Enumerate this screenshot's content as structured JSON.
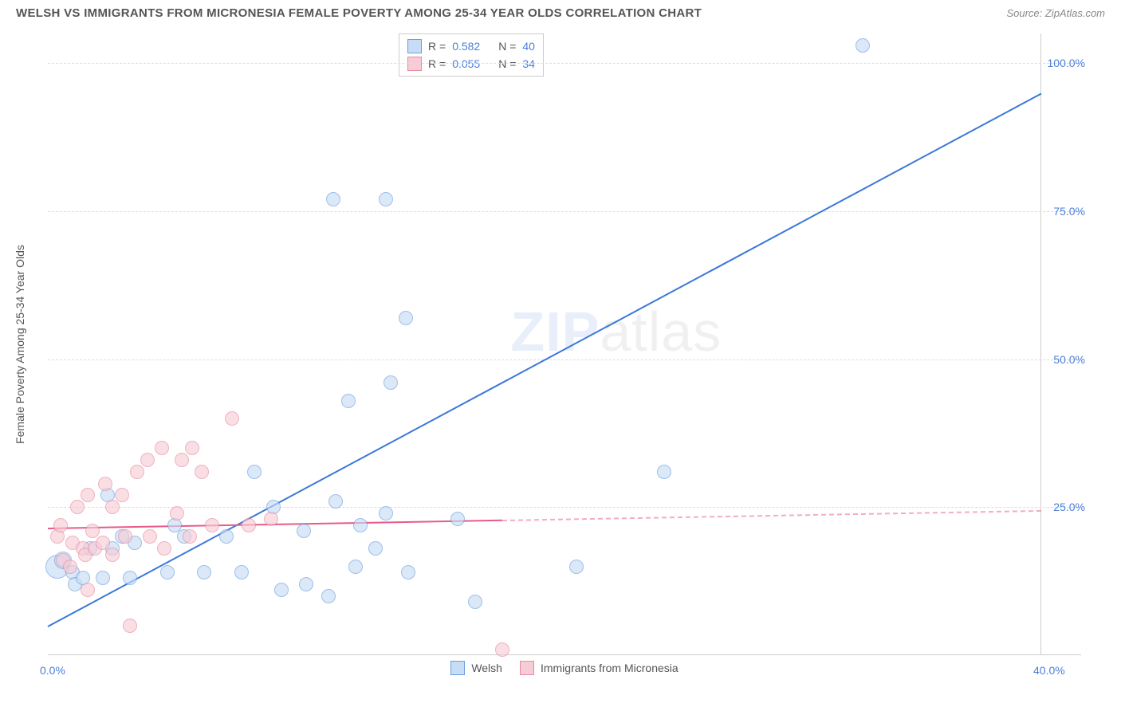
{
  "title": "WELSH VS IMMIGRANTS FROM MICRONESIA FEMALE POVERTY AMONG 25-34 YEAR OLDS CORRELATION CHART",
  "source": "Source: ZipAtlas.com",
  "ylabel": "Female Poverty Among 25-34 Year Olds",
  "watermark_zip": "ZIP",
  "watermark_atlas": "atlas",
  "chart": {
    "type": "scatter",
    "xlim": [
      0,
      40
    ],
    "ylim": [
      0,
      105
    ],
    "xticks": [
      {
        "v": 0,
        "label": "0.0%"
      },
      {
        "v": 40,
        "label": "40.0%"
      }
    ],
    "yticks": [
      {
        "v": 25,
        "label": "25.0%"
      },
      {
        "v": 50,
        "label": "50.0%"
      },
      {
        "v": 75,
        "label": "75.0%"
      },
      {
        "v": 100,
        "label": "100.0%"
      }
    ],
    "background_color": "#ffffff",
    "grid_color": "#dddddd",
    "axis_color": "#cccccc",
    "tick_font_color": "#4a7fd8",
    "label_font_color": "#555555",
    "title_fontsize": 15,
    "tick_fontsize": 14,
    "label_fontsize": 14,
    "watermark_color": "#4a7fd8",
    "watermark_opacity": 0.12,
    "series": [
      {
        "name": "Welsh",
        "fill": "#c7dcf5",
        "stroke": "#6a9fe0",
        "fill_opacity": 0.65,
        "marker_radius": 9,
        "trend": {
          "x1": 0,
          "y1": 5,
          "x2": 40,
          "y2": 95,
          "color": "#3b78d8",
          "width": 2,
          "dashed_from": null
        },
        "R_label": "R =",
        "R": "0.582",
        "N_label": "N =",
        "N": "40",
        "points": [
          {
            "x": 0.4,
            "y": 15,
            "r": 15
          },
          {
            "x": 0.6,
            "y": 16,
            "r": 11
          },
          {
            "x": 1.0,
            "y": 14
          },
          {
            "x": 1.1,
            "y": 12
          },
          {
            "x": 1.4,
            "y": 13
          },
          {
            "x": 1.7,
            "y": 18
          },
          {
            "x": 2.2,
            "y": 13
          },
          {
            "x": 2.4,
            "y": 27
          },
          {
            "x": 2.6,
            "y": 18
          },
          {
            "x": 3.0,
            "y": 20
          },
          {
            "x": 3.3,
            "y": 13
          },
          {
            "x": 3.5,
            "y": 19
          },
          {
            "x": 4.8,
            "y": 14
          },
          {
            "x": 5.1,
            "y": 22
          },
          {
            "x": 5.5,
            "y": 20
          },
          {
            "x": 6.3,
            "y": 14
          },
          {
            "x": 7.2,
            "y": 20
          },
          {
            "x": 7.8,
            "y": 14
          },
          {
            "x": 8.3,
            "y": 31
          },
          {
            "x": 9.1,
            "y": 25
          },
          {
            "x": 9.4,
            "y": 11
          },
          {
            "x": 10.3,
            "y": 21
          },
          {
            "x": 10.4,
            "y": 12
          },
          {
            "x": 11.3,
            "y": 10
          },
          {
            "x": 11.5,
            "y": 77
          },
          {
            "x": 11.6,
            "y": 26
          },
          {
            "x": 12.1,
            "y": 43
          },
          {
            "x": 12.4,
            "y": 15
          },
          {
            "x": 12.6,
            "y": 22
          },
          {
            "x": 13.2,
            "y": 18
          },
          {
            "x": 13.6,
            "y": 77
          },
          {
            "x": 13.6,
            "y": 24
          },
          {
            "x": 13.8,
            "y": 46
          },
          {
            "x": 14.5,
            "y": 14
          },
          {
            "x": 14.4,
            "y": 57
          },
          {
            "x": 16.5,
            "y": 23
          },
          {
            "x": 17.2,
            "y": 9
          },
          {
            "x": 21.3,
            "y": 15
          },
          {
            "x": 24.8,
            "y": 31
          },
          {
            "x": 32.8,
            "y": 103
          }
        ]
      },
      {
        "name": "Immigrants from Micronesia",
        "fill": "#f6cdd6",
        "stroke": "#e88aa0",
        "fill_opacity": 0.65,
        "marker_radius": 9,
        "trend": {
          "x1": 0,
          "y1": 21.5,
          "x2": 40,
          "y2": 24.5,
          "color": "#e85b86",
          "width": 2,
          "dashed_from": 18.3
        },
        "R_label": "R =",
        "R": "0.055",
        "N_label": "N =",
        "N": "34",
        "points": [
          {
            "x": 0.4,
            "y": 20
          },
          {
            "x": 0.5,
            "y": 22
          },
          {
            "x": 0.6,
            "y": 16
          },
          {
            "x": 0.9,
            "y": 15
          },
          {
            "x": 1.0,
            "y": 19
          },
          {
            "x": 1.2,
            "y": 25
          },
          {
            "x": 1.4,
            "y": 18
          },
          {
            "x": 1.5,
            "y": 17
          },
          {
            "x": 1.6,
            "y": 11
          },
          {
            "x": 1.8,
            "y": 21
          },
          {
            "x": 1.9,
            "y": 18
          },
          {
            "x": 1.6,
            "y": 27
          },
          {
            "x": 2.2,
            "y": 19
          },
          {
            "x": 2.3,
            "y": 29
          },
          {
            "x": 2.6,
            "y": 17
          },
          {
            "x": 2.6,
            "y": 25
          },
          {
            "x": 3.0,
            "y": 27
          },
          {
            "x": 3.1,
            "y": 20
          },
          {
            "x": 3.3,
            "y": 5
          },
          {
            "x": 3.6,
            "y": 31
          },
          {
            "x": 4.0,
            "y": 33
          },
          {
            "x": 4.1,
            "y": 20
          },
          {
            "x": 4.6,
            "y": 35
          },
          {
            "x": 4.7,
            "y": 18
          },
          {
            "x": 5.2,
            "y": 24
          },
          {
            "x": 5.4,
            "y": 33
          },
          {
            "x": 5.7,
            "y": 20
          },
          {
            "x": 5.8,
            "y": 35
          },
          {
            "x": 6.2,
            "y": 31
          },
          {
            "x": 6.6,
            "y": 22
          },
          {
            "x": 7.4,
            "y": 40
          },
          {
            "x": 8.1,
            "y": 22
          },
          {
            "x": 9.0,
            "y": 23
          },
          {
            "x": 18.3,
            "y": 1
          }
        ]
      }
    ],
    "bottom_legend": [
      {
        "label": "Welsh",
        "fill": "#c7dcf5",
        "stroke": "#6a9fe0"
      },
      {
        "label": "Immigrants from Micronesia",
        "fill": "#f6cdd6",
        "stroke": "#e88aa0"
      }
    ]
  }
}
